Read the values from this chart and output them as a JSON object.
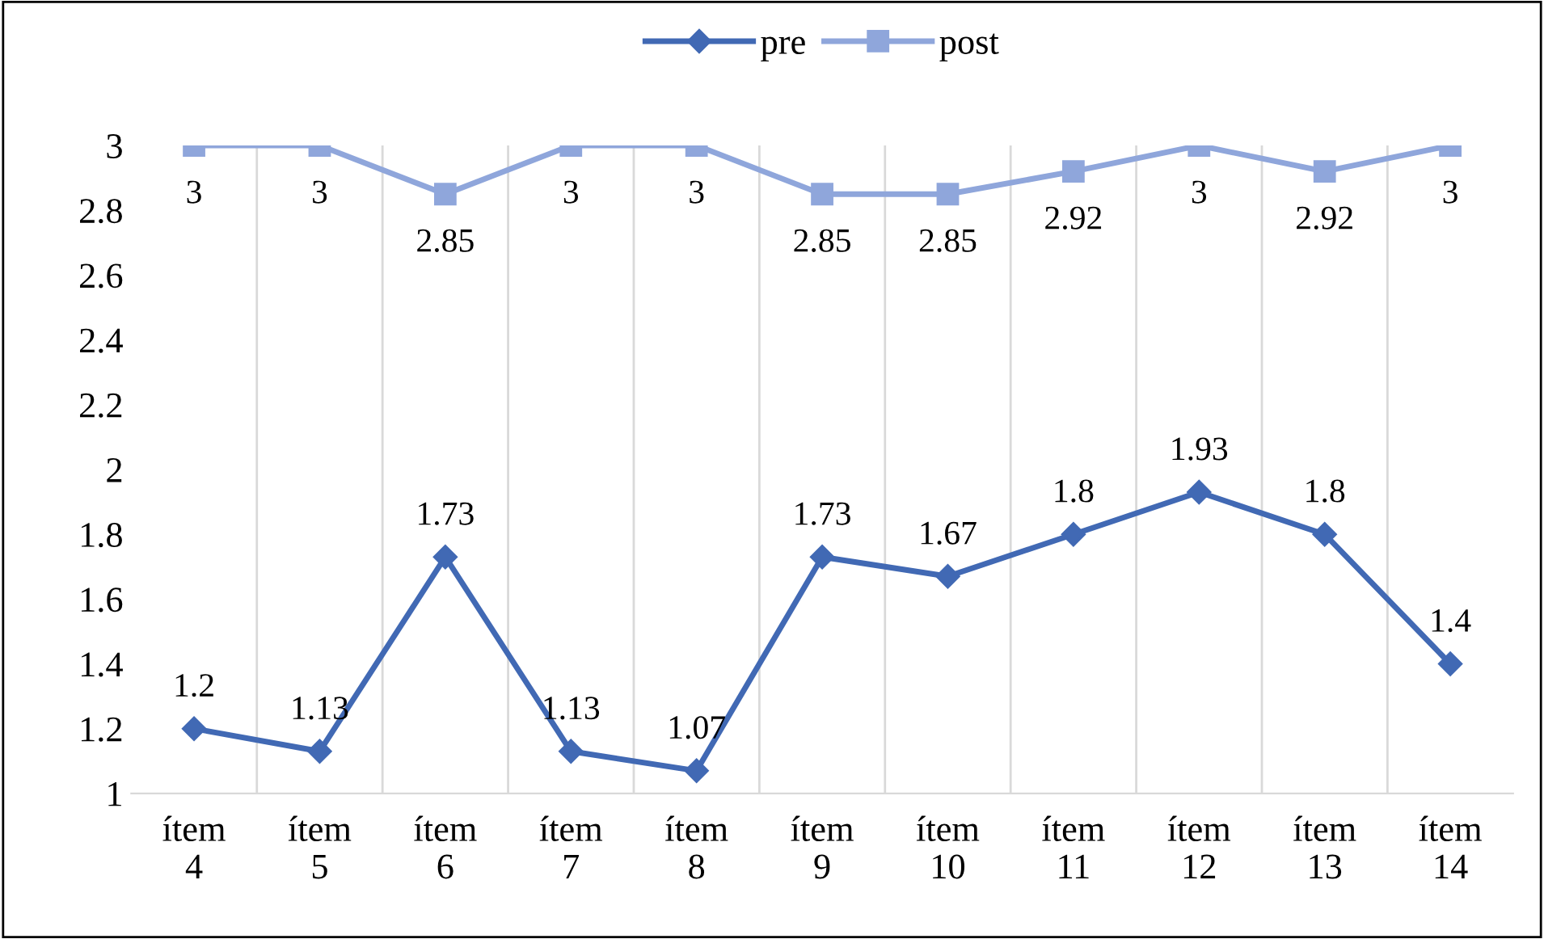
{
  "chart_data": {
    "type": "line",
    "categories": [
      "ítem\n4",
      "ítem\n5",
      "ítem\n6",
      "ítem\n7",
      "ítem\n8",
      "ítem\n9",
      "ítem\n10",
      "ítem\n11",
      "ítem\n12",
      "ítem\n13",
      "ítem\n14"
    ],
    "series": [
      {
        "name": "pre",
        "color": "#4169b4",
        "marker": "diamond",
        "values": [
          1.2,
          1.13,
          1.73,
          1.13,
          1.07,
          1.73,
          1.67,
          1.8,
          1.93,
          1.8,
          1.4
        ]
      },
      {
        "name": "post",
        "color": "#8fa6db",
        "marker": "square",
        "values": [
          3,
          3,
          2.85,
          3,
          3,
          2.85,
          2.85,
          2.92,
          3,
          2.92,
          3
        ]
      }
    ],
    "ylim": [
      1,
      3
    ],
    "yticks": [
      1,
      1.2,
      1.4,
      1.6,
      1.8,
      2,
      2.2,
      2.4,
      2.6,
      2.8,
      3
    ],
    "grid": "x",
    "legend": "top",
    "data_labels": true,
    "line_style": "solid"
  }
}
